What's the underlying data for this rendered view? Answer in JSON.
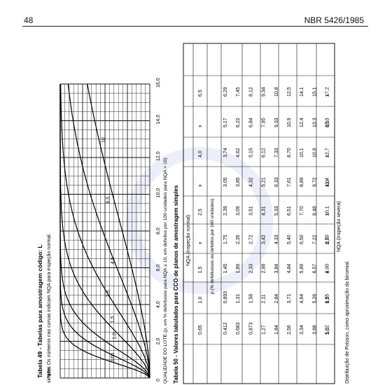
{
  "header": {
    "page_number": "48",
    "doc_id": "NBR 5426/1985"
  },
  "table49": {
    "title": "Tabela 49 - Tabelas para amostragem código: L",
    "note": "Nota: Os números nas curvas indicam NQA para inspeção normal.",
    "fragment_left": "simples",
    "xaxis_label": "QUALIDADE DO LOTE (p, em % defeituoso para NQA ≤ 10, em defeitos por 100 unidades para NQA > 10)",
    "xticks": [
      "0",
      "2,0",
      "4,0",
      "6,0",
      "8,0",
      "10,0",
      "12,0",
      "14,0",
      "16,0"
    ],
    "curve_labels": [
      "0,65",
      "1,0",
      "1,5",
      "2,5",
      "4,0",
      "6,5",
      "10"
    ]
  },
  "table50": {
    "title": "Tabela 50 - Valores tabulados para CCO de planos de amostragem simples",
    "nqa_normal_label": "NQA (Inspeção normal)",
    "nqa_severa_label": "NQA (Inspeção severa)",
    "col_head_normal": [
      "0,65",
      "1,0",
      "1,5",
      "x",
      "2,5",
      "x",
      "4,0",
      "x",
      "6,5"
    ],
    "unit_row": "p (% defeituosos ou defeitos por 100 unidades)",
    "rows": [
      [
        "0,412",
        "0,893",
        "1,45",
        "1,75",
        "2,39",
        "3,05",
        "3,74",
        "5,17",
        "6,29"
      ],
      [
        "0,683",
        "1,31",
        "1,99",
        "2,35",
        "3,09",
        "3,85",
        "4,62",
        "6,22",
        "7,45"
      ],
      [
        "0,873",
        "1,58",
        "2,33",
        "2,72",
        "3,51",
        "4,32",
        "5,15",
        "6,84",
        "8,12"
      ],
      [
        "1,27",
        "2,11",
        "2,98",
        "3,42",
        "4,31",
        "5,21",
        "6,12",
        "7,95",
        "9,34"
      ],
      [
        "1,84",
        "2,84",
        "3,84",
        "4,33",
        "5,33",
        "6,33",
        "7,33",
        "9,33",
        "10,8"
      ],
      [
        "2,56",
        "3,71",
        "4,84",
        "5,40",
        "6,51",
        "7,61",
        "8,70",
        "10,9",
        "12,5"
      ],
      [
        "3,34",
        "4,64",
        "5,89",
        "6,50",
        "7,70",
        "8,89",
        "10,1",
        "12,4",
        "14,1"
      ],
      [
        "3,88",
        "5,26",
        "6,57",
        "7,22",
        "8,48",
        "9,72",
        "10,9",
        "13,3",
        "15,1"
      ],
      [
        "5,02",
        "6,55",
        "8,00",
        "8,70",
        "10,1",
        "11,4",
        "12,7",
        "15,3",
        "17,2"
      ]
    ],
    "col_head_severa": [
      "1,0",
      "1,5",
      "x",
      "2,5",
      "x",
      "4,0",
      "x",
      "6,5",
      "x"
    ],
    "footnote": "Distribuição de Poisson, como aproximação da binomial."
  }
}
